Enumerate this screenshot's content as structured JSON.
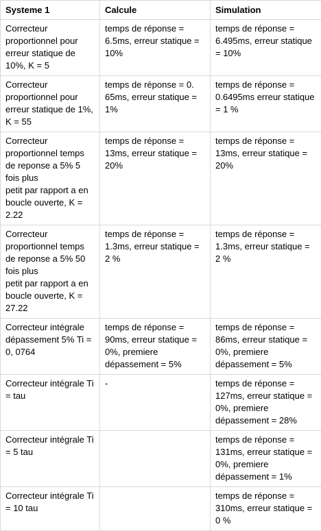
{
  "table": {
    "headers": [
      "Systeme 1",
      "Calcule",
      "Simulation"
    ],
    "rows": [
      {
        "systeme": "Correcteur proportionnel pour erreur statique de 10%, K = 5",
        "calcule": "temps de réponse = 6.5ms, erreur statique = 10%",
        "simulation": "temps de réponse = 6.495ms, erreur statique = 10%"
      },
      {
        "systeme": "Correcteur proportionnel pour erreur statique de 1%, K = 55",
        "calcule": "temps de réponse = 0. 65ms, erreur statique = 1%",
        "simulation": "temps de réponse = 0.6495ms erreur statique = 1 %"
      },
      {
        "systeme": "Correcteur proportionnel temps de reponse a 5% 5 fois plus\npetit par rapport a en boucle ouverte, K = 2.22",
        "calcule": "temps de réponse = 13ms, erreur statique = 20%",
        "simulation": "temps de réponse = 13ms, erreur statique = 20%"
      },
      {
        "systeme": "Correcteur proportionnel temps de reponse a 5% 50 fois plus\npetit par rapport a en boucle ouverte, K = 27.22",
        "calcule": "temps de réponse = 1.3ms, erreur statique = 2 %",
        "simulation": "temps de réponse = 1.3ms, erreur statique = 2 %"
      },
      {
        "systeme": "Correcteur intégrale dépassement 5% Ti = 0, 0764",
        "calcule": "temps de réponse = 90ms, erreur statique = 0%, premiere dépassement = 5%",
        "simulation": "temps de réponse = 86ms, erreur statique = 0%, premiere dépassement = 5%"
      },
      {
        "systeme": "Correcteur intégrale Ti = tau",
        "calcule": "-",
        "simulation": "temps de réponse = 127ms, erreur statique = 0%, premiere dépassement = 28%"
      },
      {
        "systeme": "Correcteur intégrale Ti = 5 tau",
        "calcule": "",
        "simulation": "temps de réponse = 131ms, erreur statique = 0%, premiere dépassement = 1%"
      },
      {
        "systeme": "Correcteur intégrale Ti = 10 tau",
        "calcule": "",
        "simulation": "temps de réponse = 310ms, erreur statique = 0 %"
      }
    ]
  }
}
